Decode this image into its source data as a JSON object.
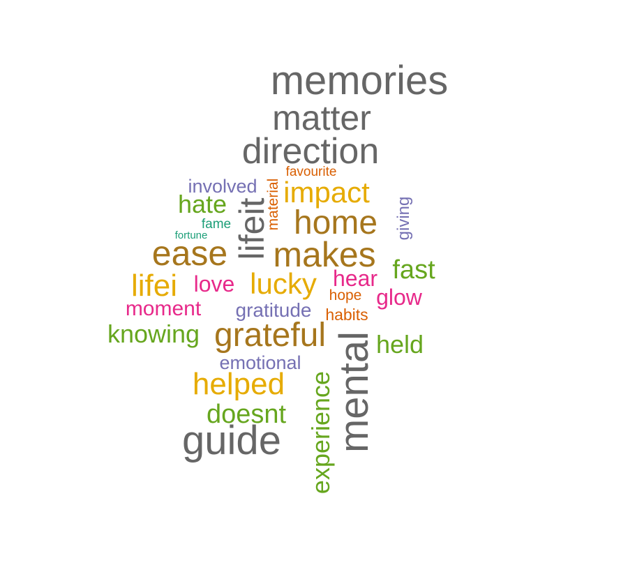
{
  "words": [
    {
      "text": "memories",
      "color": "#666666"
    },
    {
      "text": "matter",
      "color": "#666666"
    },
    {
      "text": "direction",
      "color": "#666666"
    },
    {
      "text": "favourite",
      "color": "#D95F02"
    },
    {
      "text": "involved",
      "color": "#7570B3"
    },
    {
      "text": "impact",
      "color": "#E6AB02"
    },
    {
      "text": "material",
      "color": "#D95F02"
    },
    {
      "text": "lifeit",
      "color": "#666666"
    },
    {
      "text": "giving",
      "color": "#7570B3"
    },
    {
      "text": "hate",
      "color": "#66A61E"
    },
    {
      "text": "home",
      "color": "#A6761D"
    },
    {
      "text": "fame",
      "color": "#1B9E77"
    },
    {
      "text": "fortune",
      "color": "#1B9E77"
    },
    {
      "text": "ease",
      "color": "#A6761D"
    },
    {
      "text": "makes",
      "color": "#A6761D"
    },
    {
      "text": "fast",
      "color": "#66A61E"
    },
    {
      "text": "lifei",
      "color": "#E6AB02"
    },
    {
      "text": "love",
      "color": "#E7298A"
    },
    {
      "text": "lucky",
      "color": "#E6AB02"
    },
    {
      "text": "hear",
      "color": "#E7298A"
    },
    {
      "text": "hope",
      "color": "#D95F02"
    },
    {
      "text": "glow",
      "color": "#E7298A"
    },
    {
      "text": "moment",
      "color": "#E7298A"
    },
    {
      "text": "gratitude",
      "color": "#7570B3"
    },
    {
      "text": "habits",
      "color": "#D95F02"
    },
    {
      "text": "knowing",
      "color": "#66A61E"
    },
    {
      "text": "grateful",
      "color": "#A6761D"
    },
    {
      "text": "held",
      "color": "#66A61E"
    },
    {
      "text": "mental",
      "color": "#666666"
    },
    {
      "text": "emotional",
      "color": "#7570B3"
    },
    {
      "text": "helped",
      "color": "#E6AB02"
    },
    {
      "text": "experience",
      "color": "#66A61E"
    },
    {
      "text": "doesnt",
      "color": "#66A61E"
    },
    {
      "text": "guide",
      "color": "#666666"
    }
  ]
}
